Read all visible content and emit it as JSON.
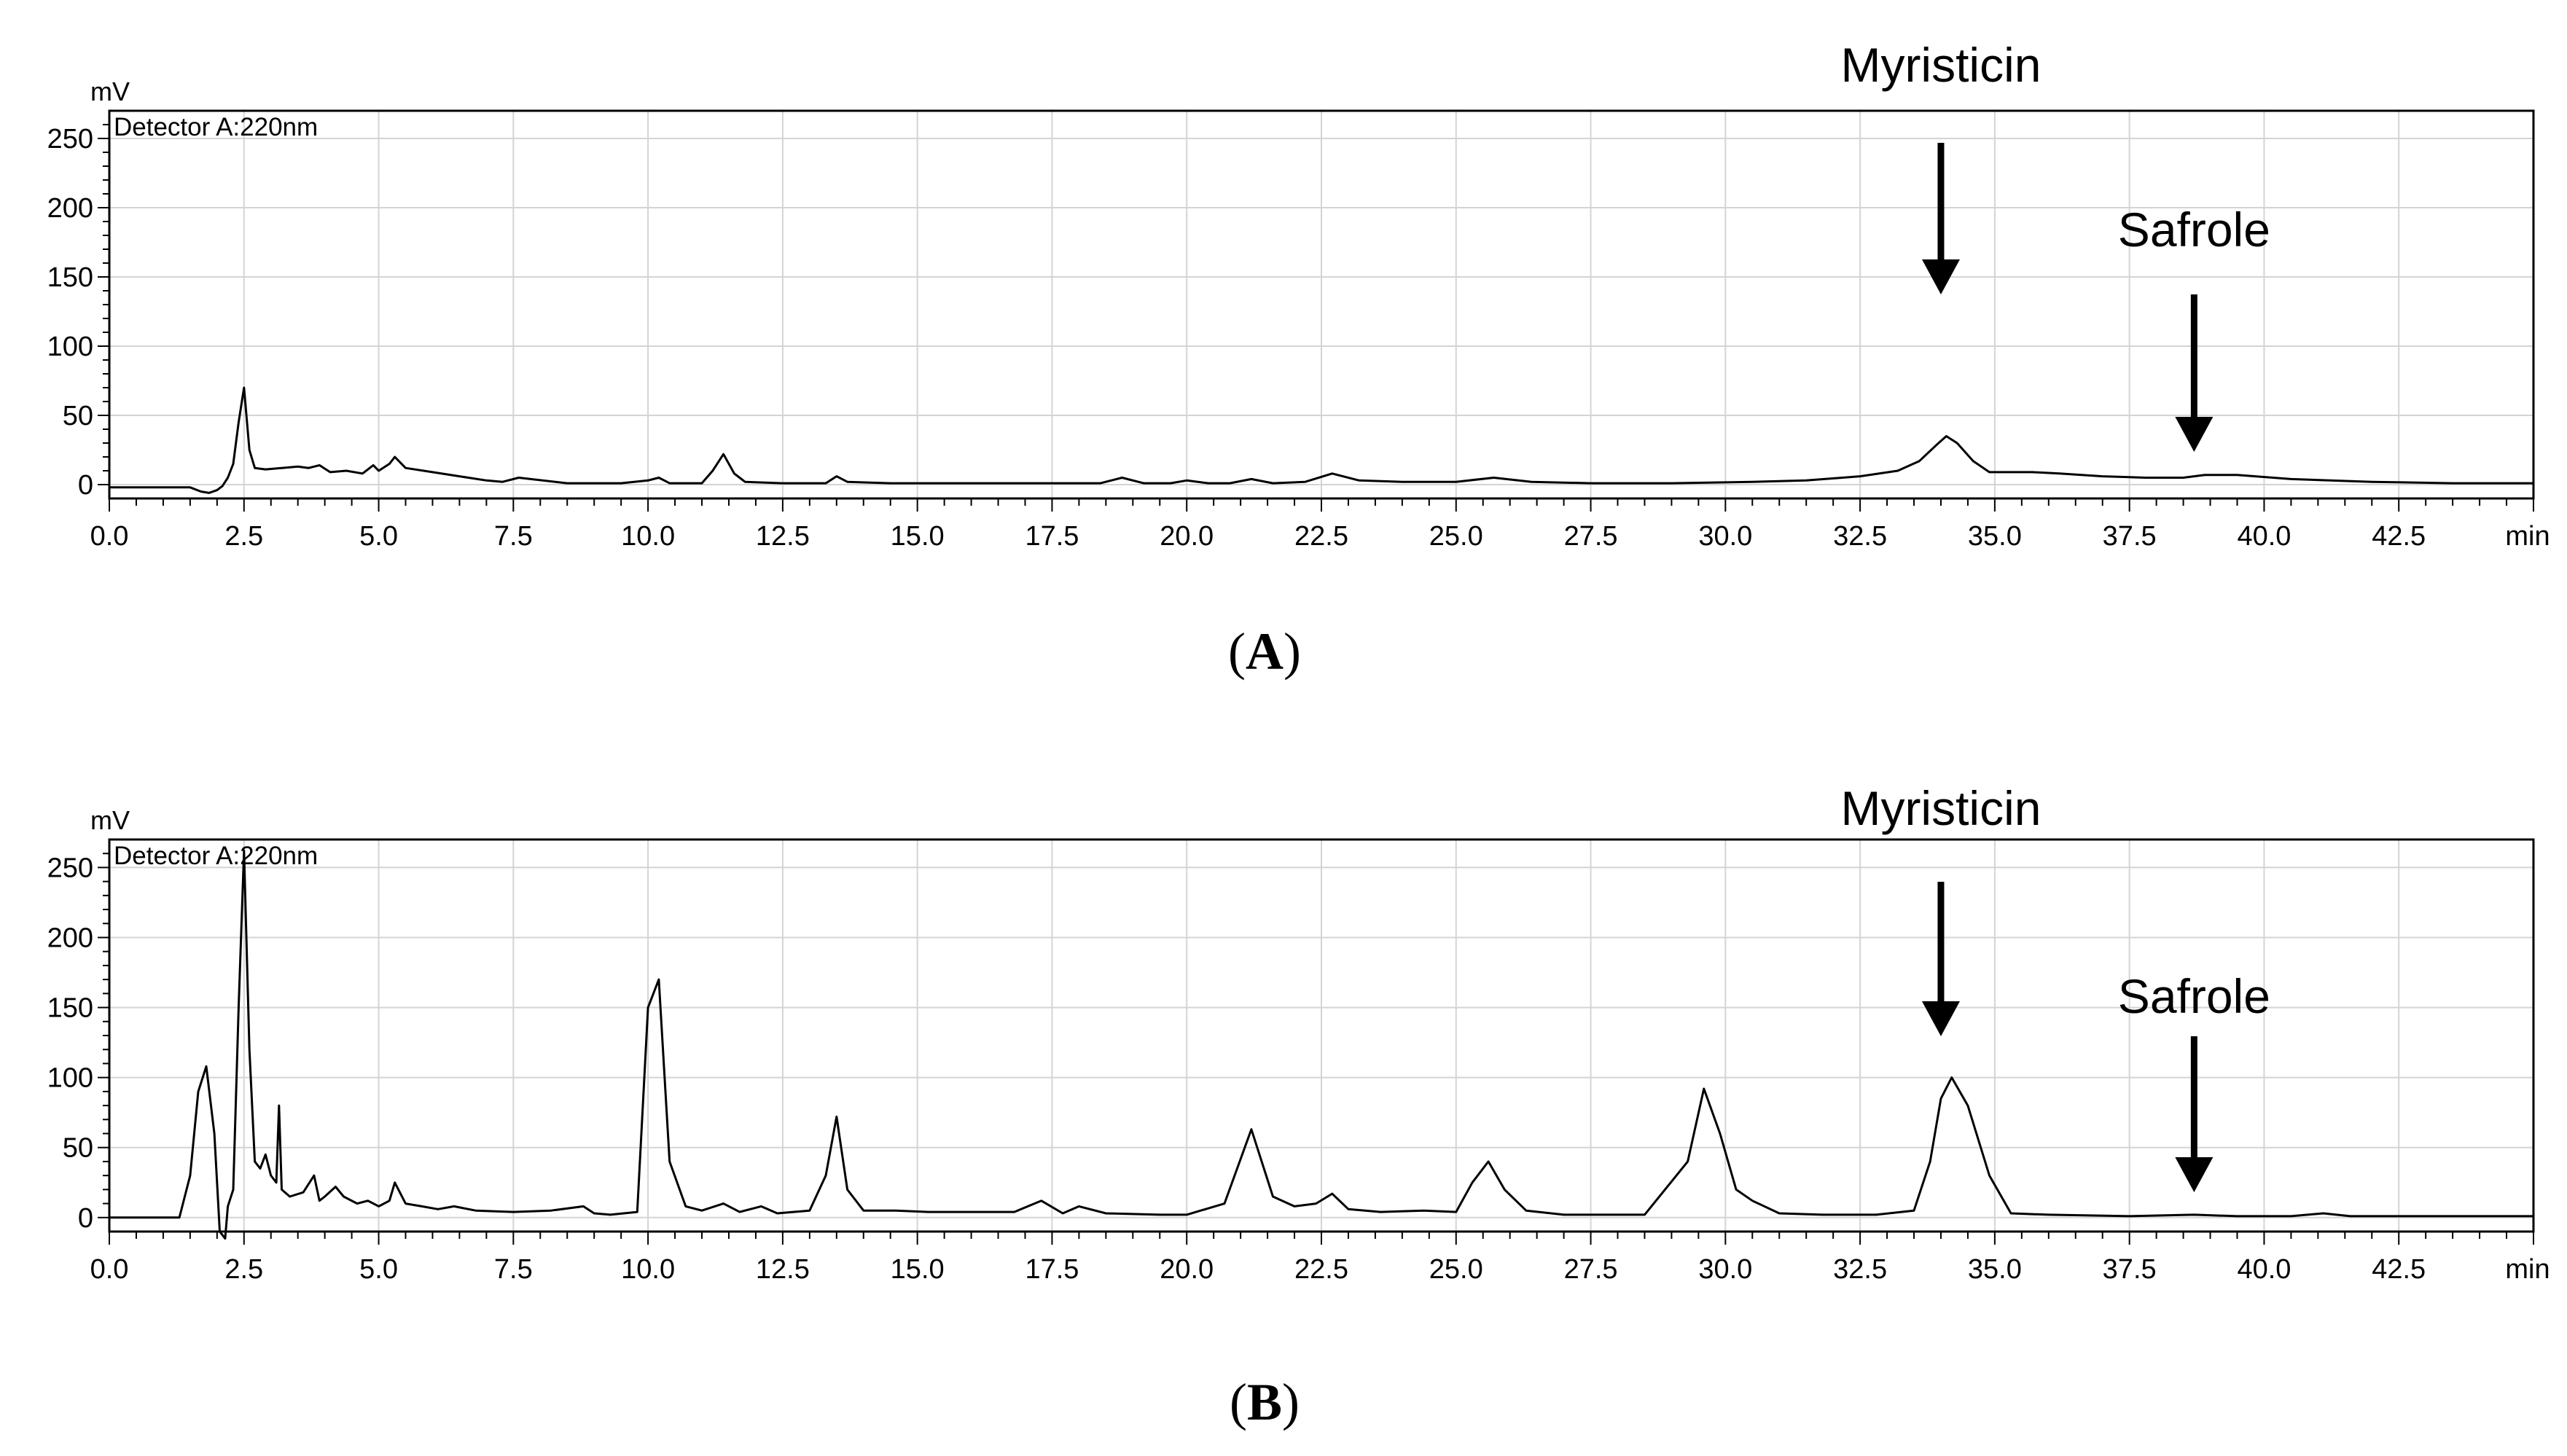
{
  "chart_data": [
    {
      "type": "line",
      "panel_label": "A",
      "detector": "Detector A:220nm",
      "y_unit": "mV",
      "x_unit": "min",
      "xlim": [
        0,
        45
      ],
      "ylim": [
        -10,
        270
      ],
      "x_ticks": [
        "0.0",
        "2.5",
        "5.0",
        "7.5",
        "10.0",
        "12.5",
        "15.0",
        "17.5",
        "20.0",
        "22.5",
        "25.0",
        "27.5",
        "30.0",
        "32.5",
        "35.0",
        "37.5",
        "40.0",
        "42.5"
      ],
      "x_tick_values": [
        0,
        2.5,
        5,
        7.5,
        10,
        12.5,
        15,
        17.5,
        20,
        22.5,
        25,
        27.5,
        30,
        32.5,
        35,
        37.5,
        40,
        42.5
      ],
      "y_ticks": [
        0,
        50,
        100,
        150,
        200,
        250
      ],
      "grid": true,
      "series": [
        {
          "x": [
            0.0,
            1.5,
            1.7,
            1.85,
            2.0,
            2.1,
            2.2,
            2.3,
            2.4,
            2.5,
            2.6,
            2.7,
            2.9,
            3.2,
            3.5,
            3.7,
            3.9,
            4.1,
            4.4,
            4.7,
            4.9,
            5.0,
            5.2,
            5.3,
            5.5,
            6.0,
            6.5,
            7.0,
            7.3,
            7.6,
            8.5,
            9.5,
            10.0,
            10.2,
            10.4,
            11.0,
            11.2,
            11.4,
            11.6,
            11.8,
            12.5,
            13.3,
            13.5,
            13.7,
            14.5,
            16.0,
            17.5,
            18.4,
            18.8,
            19.2,
            19.7,
            20.0,
            20.4,
            20.8,
            21.2,
            21.6,
            22.2,
            22.7,
            23.2,
            24.0,
            25.0,
            25.7,
            26.4,
            27.5,
            29.0,
            30.5,
            31.5,
            32.5,
            33.2,
            33.6,
            33.9,
            34.1,
            34.3,
            34.6,
            34.9,
            35.3,
            35.7,
            36.2,
            37.0,
            37.8,
            38.5,
            38.9,
            39.5,
            40.5,
            42.0,
            43.5,
            45.0
          ],
          "y": [
            -2,
            -2,
            -5,
            -6,
            -4,
            -1,
            5,
            15,
            45,
            70,
            25,
            12,
            11,
            12,
            13,
            12,
            14,
            9,
            10,
            8,
            14,
            10,
            15,
            20,
            12,
            9,
            6,
            3,
            2,
            5,
            1,
            1,
            3,
            5,
            1,
            1,
            10,
            22,
            8,
            2,
            1,
            1,
            6,
            2,
            1,
            1,
            1,
            1,
            5,
            1,
            1,
            3,
            1,
            1,
            4,
            1,
            2,
            8,
            3,
            2,
            2,
            5,
            2,
            1,
            1,
            2,
            3,
            6,
            10,
            17,
            28,
            35,
            30,
            17,
            9,
            9,
            9,
            8,
            6,
            5,
            5,
            7,
            7,
            4,
            2,
            1,
            1
          ]
        }
      ],
      "annotations": [
        {
          "label": "Myristicin",
          "x": 34.0
        },
        {
          "label": "Safrole",
          "x": 38.7
        }
      ]
    },
    {
      "type": "line",
      "panel_label": "B",
      "detector": "Detector A:220nm",
      "y_unit": "mV",
      "x_unit": "min",
      "xlim": [
        0,
        45
      ],
      "ylim": [
        -10,
        270
      ],
      "x_ticks": [
        "0.0",
        "2.5",
        "5.0",
        "7.5",
        "10.0",
        "12.5",
        "15.0",
        "17.5",
        "20.0",
        "22.5",
        "25.0",
        "27.5",
        "30.0",
        "32.5",
        "35.0",
        "37.5",
        "40.0",
        "42.5"
      ],
      "x_tick_values": [
        0,
        2.5,
        5,
        7.5,
        10,
        12.5,
        15,
        17.5,
        20,
        22.5,
        25,
        27.5,
        30,
        32.5,
        35,
        37.5,
        40,
        42.5
      ],
      "y_ticks": [
        0,
        50,
        100,
        150,
        200,
        250
      ],
      "grid": true,
      "series": [
        {
          "x": [
            0.0,
            1.3,
            1.5,
            1.65,
            1.8,
            1.95,
            2.05,
            2.15,
            2.2,
            2.3,
            2.4,
            2.5,
            2.6,
            2.7,
            2.8,
            2.9,
            3.0,
            3.1,
            3.15,
            3.2,
            3.35,
            3.6,
            3.8,
            3.9,
            4.0,
            4.2,
            4.35,
            4.6,
            4.8,
            5.0,
            5.2,
            5.3,
            5.5,
            5.8,
            6.1,
            6.4,
            6.8,
            7.5,
            8.2,
            8.8,
            9.0,
            9.3,
            9.8,
            10.0,
            10.2,
            10.4,
            10.7,
            11.0,
            11.4,
            11.7,
            12.1,
            12.4,
            13.0,
            13.3,
            13.5,
            13.7,
            14.0,
            14.6,
            15.2,
            16.0,
            16.8,
            17.3,
            17.7,
            18.0,
            18.5,
            19.5,
            20.0,
            20.7,
            21.2,
            21.6,
            22.0,
            22.4,
            22.7,
            23.0,
            23.6,
            24.4,
            25.0,
            25.3,
            25.6,
            25.9,
            26.3,
            27.0,
            28.5,
            29.3,
            29.6,
            29.9,
            30.2,
            30.5,
            31.0,
            31.8,
            32.8,
            33.5,
            33.8,
            34.0,
            34.2,
            34.5,
            34.9,
            35.3,
            36.0,
            37.5,
            38.7,
            39.5,
            40.5,
            41.1,
            41.6,
            42.5,
            45.0
          ],
          "y": [
            0,
            0,
            30,
            90,
            108,
            60,
            -10,
            -15,
            8,
            20,
            150,
            262,
            120,
            40,
            35,
            45,
            30,
            25,
            80,
            20,
            15,
            18,
            30,
            12,
            15,
            22,
            15,
            10,
            12,
            8,
            12,
            25,
            10,
            8,
            6,
            8,
            5,
            4,
            5,
            8,
            3,
            2,
            4,
            150,
            170,
            40,
            8,
            5,
            10,
            4,
            8,
            3,
            5,
            30,
            72,
            20,
            5,
            5,
            4,
            4,
            4,
            12,
            3,
            8,
            3,
            2,
            2,
            10,
            63,
            15,
            8,
            10,
            17,
            6,
            4,
            5,
            4,
            25,
            40,
            20,
            5,
            2,
            2,
            40,
            92,
            60,
            20,
            12,
            3,
            2,
            2,
            5,
            40,
            85,
            100,
            80,
            30,
            3,
            2,
            1,
            2,
            1,
            1,
            3,
            1,
            1,
            1
          ]
        }
      ],
      "annotations": [
        {
          "label": "Myristicin",
          "x": 34.0
        },
        {
          "label": "Safrole",
          "x": 38.7
        }
      ]
    }
  ]
}
